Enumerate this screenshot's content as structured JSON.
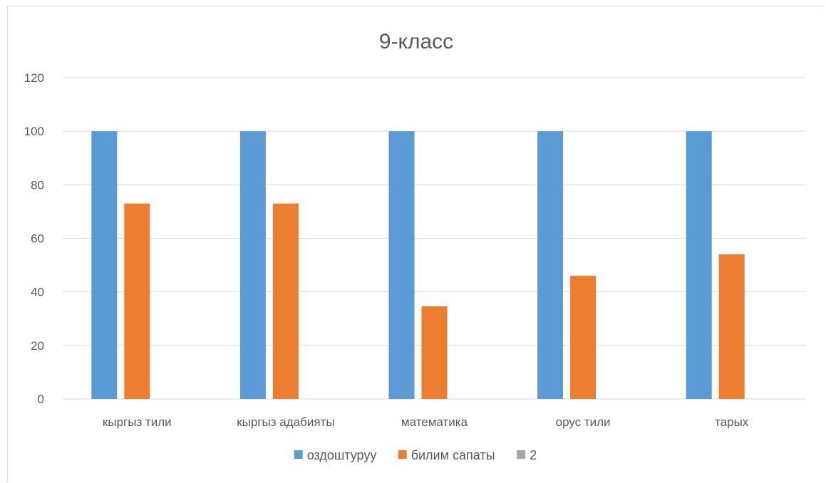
{
  "chart_data": {
    "type": "bar",
    "title": "9-класс",
    "categories": [
      "кыргыз тили",
      "кыргыз адабияты",
      "математика",
      "орус тили",
      "тарых"
    ],
    "series": [
      {
        "name": "оздоштуруу",
        "color": "#5b9bd5",
        "values": [
          100,
          100,
          100,
          100,
          100
        ]
      },
      {
        "name": "билим сапаты",
        "color": "#ed7d31",
        "values": [
          73,
          73,
          34.6,
          46,
          54
        ]
      },
      {
        "name": "2",
        "color": "#a5a5a5",
        "values": [
          0,
          0,
          0,
          0,
          0
        ]
      }
    ],
    "ylim": [
      0,
      120
    ],
    "yticks": [
      "0",
      "20",
      "40",
      "60",
      "80",
      "100",
      "120"
    ],
    "grid": true,
    "legend": "bottom"
  }
}
